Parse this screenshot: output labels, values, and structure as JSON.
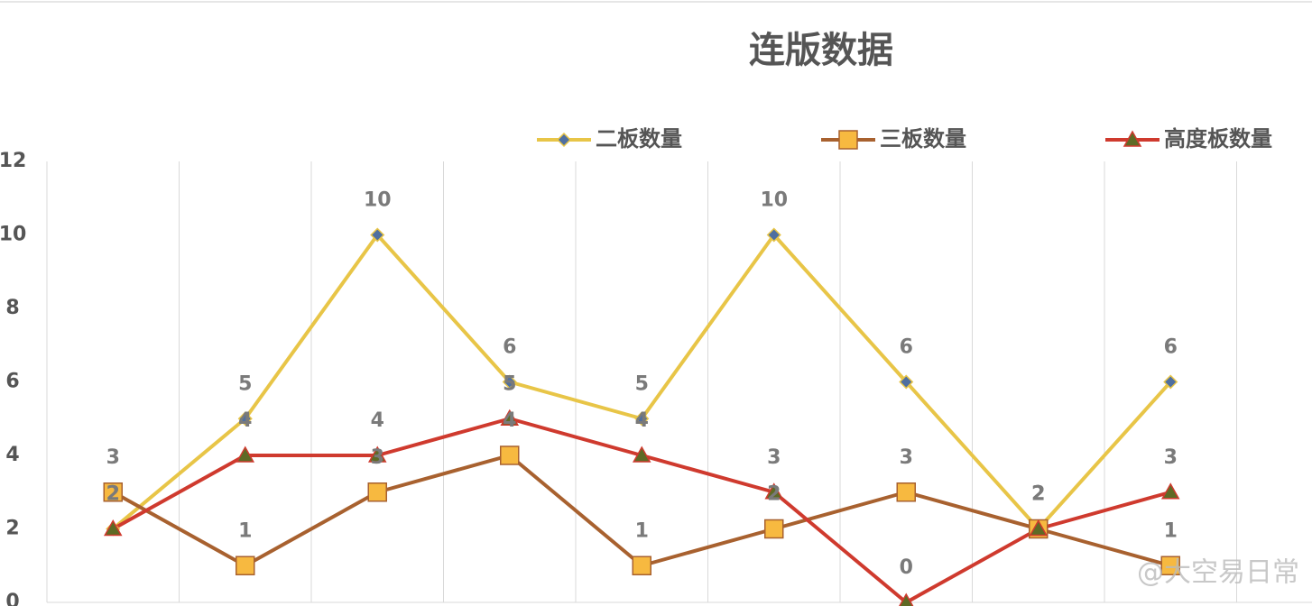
{
  "chart_data": {
    "type": "line",
    "title": "连版数据",
    "categories": [
      null,
      null,
      null,
      null,
      null,
      null,
      null,
      null,
      null
    ],
    "series": [
      {
        "name": "二板数量",
        "color": "#e8c547",
        "marker": "diamond",
        "marker_color": "#4f6fa0",
        "values": [
          2,
          5,
          10,
          6,
          5,
          10,
          6,
          2,
          6
        ]
      },
      {
        "name": "三板数量",
        "color": "#a8612f",
        "marker": "square",
        "marker_color": "#f7b940",
        "values": [
          3,
          1,
          3,
          4,
          1,
          2,
          3,
          2,
          1
        ]
      },
      {
        "name": "高度板数量",
        "color": "#cf3a2e",
        "marker": "triangle",
        "marker_color": "#5e6a25",
        "values": [
          2,
          4,
          4,
          5,
          4,
          3,
          0,
          2,
          3
        ]
      }
    ],
    "ylim": [
      0,
      12
    ],
    "yticks": [
      0,
      2,
      4,
      6,
      8,
      10,
      12
    ],
    "grid": true,
    "legend": "top",
    "watermark": "@大空易日常"
  }
}
